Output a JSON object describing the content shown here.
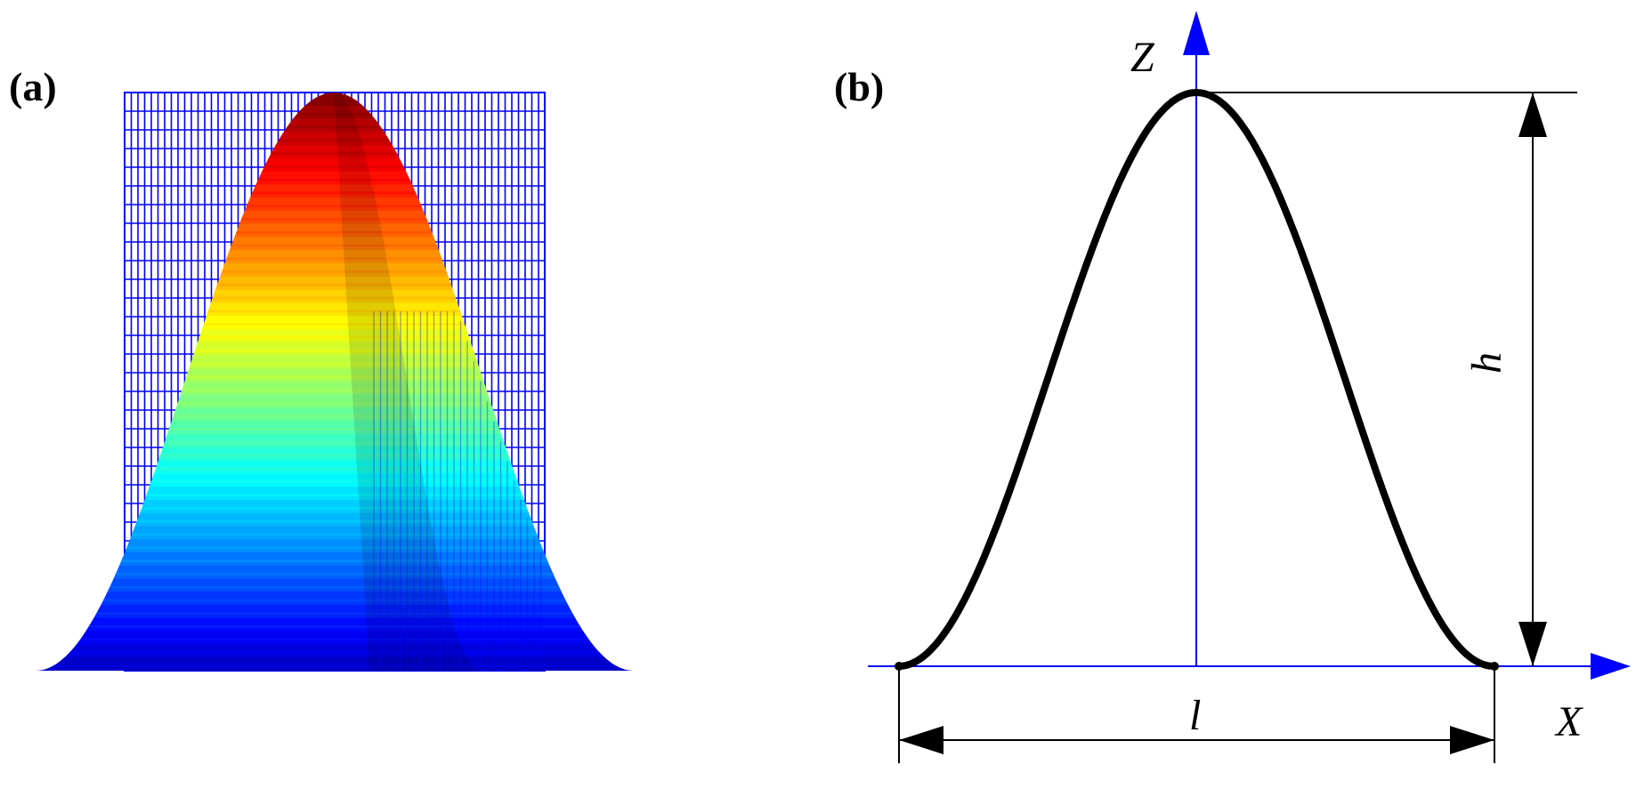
{
  "panels": {
    "a": {
      "label": "(a)"
    },
    "b": {
      "label": "(b)",
      "z_axis_label": "Z",
      "x_axis_label": "X",
      "height_label": "h",
      "length_label": "l"
    }
  },
  "colors": {
    "mesh": "#0000ff",
    "axis": "#0000ff",
    "curve": "#000000",
    "dimension": "#000000",
    "colormap": "jet"
  }
}
